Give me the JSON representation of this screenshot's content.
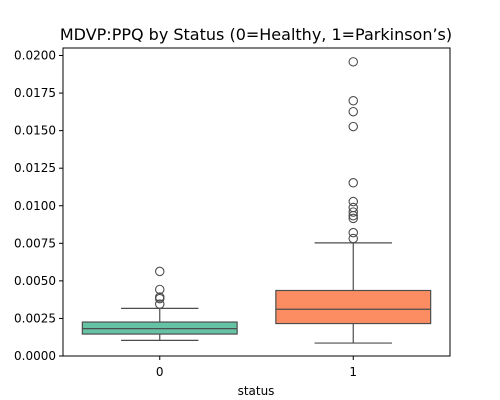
{
  "chart_data": {
    "type": "boxplot",
    "title": "MDVP:PPQ by Status (0=Healthy, 1=Parkinson’s)",
    "xlabel": "status",
    "ylabel": "",
    "categories": [
      "0",
      "1"
    ],
    "ylim": [
      0,
      0.0205
    ],
    "yticks": [
      0.0,
      0.0025,
      0.005,
      0.0075,
      0.01,
      0.0125,
      0.015,
      0.0175,
      0.02
    ],
    "ytick_labels": [
      "0.0000",
      "0.0025",
      "0.0050",
      "0.0075",
      "0.0100",
      "0.0125",
      "0.0150",
      "0.0175",
      "0.0200"
    ],
    "grid": false,
    "boxes": [
      {
        "category": "0",
        "color": "#66c2a5",
        "whisker_low": 0.00104,
        "q1": 0.00146,
        "median": 0.00182,
        "q3": 0.00226,
        "whisker_high": 0.00317,
        "outliers": [
          0.00563,
          0.00443,
          0.00392,
          0.00382,
          0.00345
        ]
      },
      {
        "category": "1",
        "color": "#fc8d62",
        "whisker_low": 0.00086,
        "q1": 0.00216,
        "median": 0.00311,
        "q3": 0.00436,
        "whisker_high": 0.00753,
        "outliers": [
          0.01958,
          0.01699,
          0.01626,
          0.01527,
          0.01153,
          0.01028,
          0.00988,
          0.00958,
          0.00934,
          0.00916,
          0.00821,
          0.00782
        ]
      }
    ]
  }
}
